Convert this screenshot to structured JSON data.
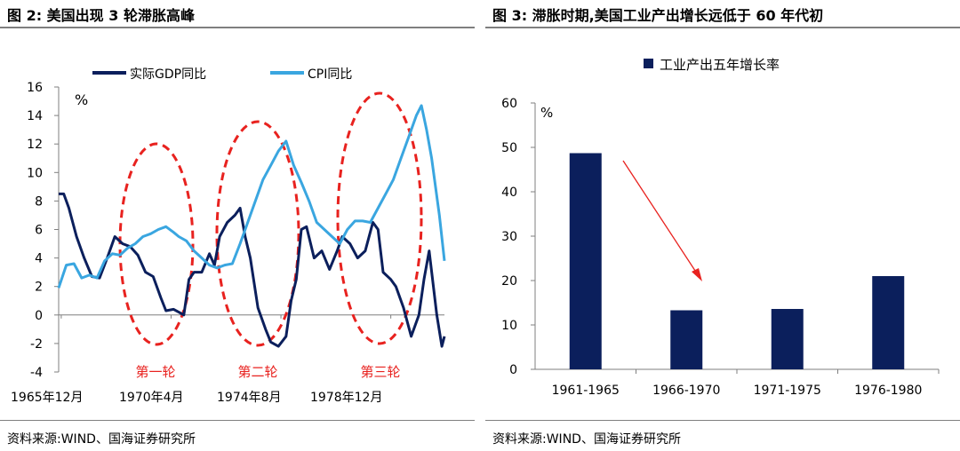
{
  "left": {
    "title": "图 2:  美国出现 3 轮滞胀高峰",
    "source": "资料来源:WIND、国海证券研究所"
  },
  "right": {
    "title": "图 3:  滞胀时期,美国工业产出增长远低于 60 年代初",
    "source": "资料来源:WIND、国海证券研究所"
  },
  "colors": {
    "gdp": "#0b1f5c",
    "cpi": "#3aa6e0",
    "bar": "#0b1f5c",
    "ellipse": "#e8221f",
    "arrow": "#e8221f"
  },
  "chart_data": [
    {
      "type": "line",
      "unit_label": "%",
      "ylim": [
        -4,
        16
      ],
      "yticks": [
        16,
        14,
        12,
        10,
        8,
        6,
        4,
        2,
        0,
        -2,
        -4
      ],
      "xlim": [
        1965.9,
        1981.0
      ],
      "xtick_labels": [
        "1965年12月",
        "1970年4月",
        "1974年8月",
        "1978年12月"
      ],
      "legend": [
        "实际GDP同比",
        "CPI同比"
      ],
      "annotations": [
        "第一轮",
        "第二轮",
        "第三轮"
      ],
      "series": [
        {
          "name": "实际GDP同比",
          "x": [
            1965.9,
            1966.1,
            1966.3,
            1966.6,
            1966.9,
            1967.2,
            1967.5,
            1967.8,
            1968.1,
            1968.4,
            1968.7,
            1969.0,
            1969.3,
            1969.6,
            1969.9,
            1970.1,
            1970.4,
            1970.6,
            1970.8,
            1971.0,
            1971.2,
            1971.5,
            1971.8,
            1972.0,
            1972.2,
            1972.5,
            1972.8,
            1973.0,
            1973.2,
            1973.4,
            1973.7,
            1974.0,
            1974.2,
            1974.5,
            1974.8,
            1975.0,
            1975.2,
            1975.4,
            1975.6,
            1975.9,
            1976.2,
            1976.5,
            1976.8,
            1977.0,
            1977.3,
            1977.6,
            1977.9,
            1978.2,
            1978.4,
            1978.6,
            1978.9,
            1979.1,
            1979.4,
            1979.7,
            1980.0,
            1980.2,
            1980.4,
            1980.7,
            1980.9,
            1981.0
          ],
          "values": [
            8.5,
            8.5,
            7.5,
            5.5,
            4.0,
            2.7,
            2.6,
            4.0,
            5.5,
            5.0,
            4.8,
            4.2,
            3.0,
            2.7,
            1.2,
            0.3,
            0.4,
            0.2,
            0.0,
            2.5,
            3.0,
            3.0,
            4.3,
            3.5,
            5.5,
            6.5,
            7.0,
            7.5,
            5.5,
            4.0,
            0.5,
            -1.0,
            -1.9,
            -2.2,
            -1.5,
            1.0,
            2.5,
            6.0,
            6.2,
            4.0,
            4.5,
            3.2,
            4.5,
            5.5,
            5.0,
            4.0,
            4.5,
            6.5,
            6.0,
            3.0,
            2.5,
            2.0,
            0.5,
            -1.5,
            0.0,
            2.5,
            4.5,
            0.0,
            -2.2,
            -1.5
          ]
        },
        {
          "name": "CPI同比",
          "x": [
            1965.9,
            1966.2,
            1966.5,
            1966.8,
            1967.1,
            1967.4,
            1967.7,
            1968.0,
            1968.3,
            1968.6,
            1968.9,
            1969.2,
            1969.5,
            1969.8,
            1970.1,
            1970.4,
            1970.6,
            1970.9,
            1971.2,
            1971.5,
            1971.8,
            1972.1,
            1972.4,
            1972.7,
            1973.0,
            1973.3,
            1973.6,
            1973.9,
            1974.2,
            1974.5,
            1974.8,
            1975.1,
            1975.4,
            1975.7,
            1976.0,
            1976.3,
            1976.6,
            1976.9,
            1977.2,
            1977.5,
            1977.8,
            1978.1,
            1978.4,
            1978.7,
            1979.0,
            1979.3,
            1979.6,
            1979.9,
            1980.1,
            1980.3,
            1980.5,
            1980.8,
            1981.0
          ],
          "values": [
            1.9,
            3.5,
            3.6,
            2.6,
            2.8,
            2.6,
            3.8,
            4.3,
            4.2,
            4.7,
            5.0,
            5.5,
            5.7,
            6.0,
            6.2,
            5.8,
            5.5,
            5.2,
            4.5,
            4.0,
            3.5,
            3.3,
            3.5,
            3.6,
            5.0,
            6.5,
            8.0,
            9.5,
            10.5,
            11.5,
            12.2,
            10.5,
            9.3,
            8.0,
            6.5,
            6.0,
            5.5,
            5.0,
            6.0,
            6.6,
            6.6,
            6.5,
            7.5,
            8.5,
            9.5,
            11.0,
            12.5,
            14.0,
            14.7,
            13.0,
            11.0,
            7.0,
            3.8
          ]
        }
      ]
    },
    {
      "type": "bar",
      "legend": "工业产出五年增长率",
      "unit_label": "%",
      "ylim": [
        0,
        60
      ],
      "yticks": [
        60,
        50,
        40,
        30,
        20,
        10,
        0
      ],
      "categories": [
        "1961-1965",
        "1966-1970",
        "1971-1975",
        "1976-1980"
      ],
      "values": [
        48.7,
        13.3,
        13.6,
        21.0
      ]
    }
  ]
}
